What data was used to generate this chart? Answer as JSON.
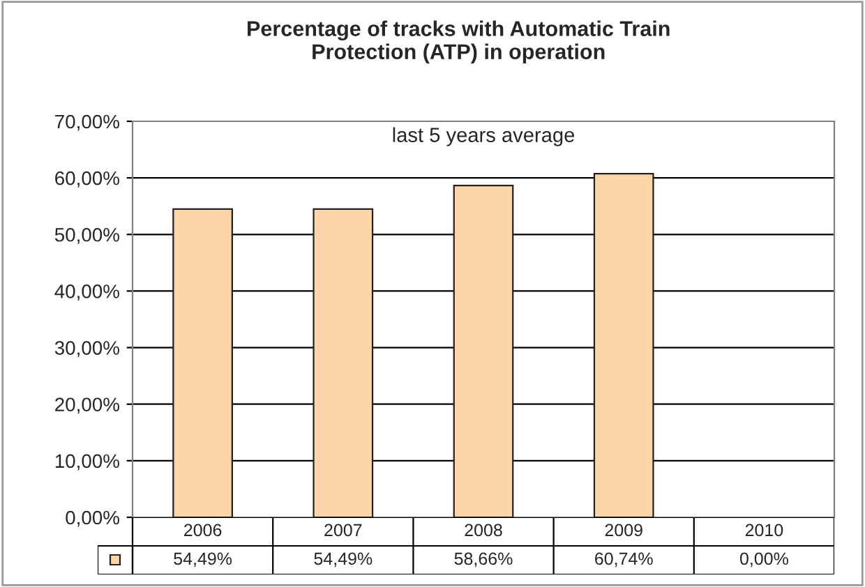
{
  "chart_data": {
    "type": "bar",
    "title": "Percentage of tracks with Automatic Train\nProtection (ATP) in operation",
    "subtitle": "last 5 years average",
    "categories": [
      "2006",
      "2007",
      "2008",
      "2009",
      "2010"
    ],
    "series": [
      {
        "color": "#fcd5a8",
        "values": [
          54.49,
          54.49,
          58.66,
          60.74,
          0.0
        ]
      }
    ],
    "value_labels": [
      "54,49%",
      "54,49%",
      "58,66%",
      "60,74%",
      "0,00%"
    ],
    "ylim": [
      0,
      70
    ],
    "yticks": [
      {
        "value": 0,
        "label": "0,00%"
      },
      {
        "value": 10,
        "label": "10,00%"
      },
      {
        "value": 20,
        "label": "20,00%"
      },
      {
        "value": 30,
        "label": "30,00%"
      },
      {
        "value": 40,
        "label": "40,00%"
      },
      {
        "value": 50,
        "label": "50,00%"
      },
      {
        "value": 60,
        "label": "60,00%"
      },
      {
        "value": 70,
        "label": "70,00%"
      }
    ],
    "grid": "y"
  }
}
